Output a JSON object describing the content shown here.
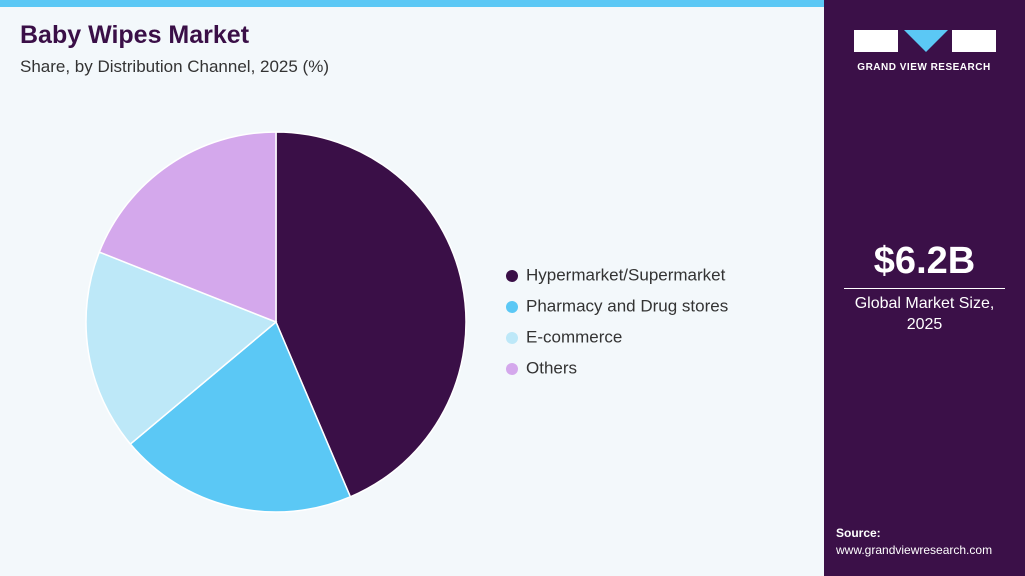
{
  "chart_data": {
    "type": "pie",
    "title": "Baby Wipes Market",
    "subtitle": "Share, by Distribution Channel, 2025 (%)",
    "categories": [
      "Hypermarket/Supermarket",
      "Pharmacy and Drug stores",
      "E-commerce",
      "Others"
    ],
    "values": [
      43.6,
      20.3,
      17.1,
      19.0
    ],
    "colors": [
      "#3a0f47",
      "#5bc8f5",
      "#bde8f8",
      "#d4a8ec"
    ]
  },
  "panel": {
    "brand": "GRAND VIEW RESEARCH",
    "market_size": "$6.2B",
    "market_size_label": "Global Market Size, 2025",
    "source_label": "Source:",
    "source_url": "www.grandviewresearch.com"
  }
}
